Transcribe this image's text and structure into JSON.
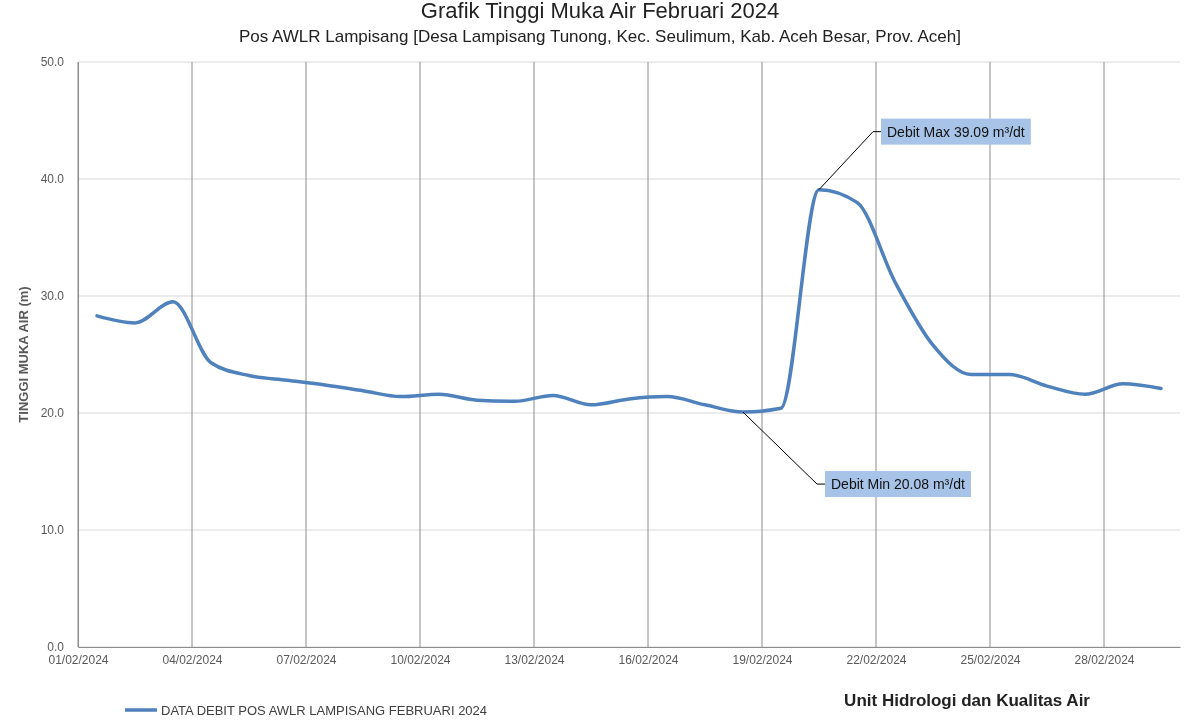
{
  "chart_data": {
    "type": "line",
    "title": "Grafik Tinggi Muka Air Februari 2024",
    "subtitle": "Pos AWLR Lampisang [Desa Lampisang Tunong, Kec. Seulimum, Kab. Aceh Besar, Prov. Aceh]",
    "ylabel": "TINGGI MUKA AIR (m)",
    "x": [
      "2024-02-01T12:00",
      "2024-02-02T12:00",
      "2024-02-03T12:00",
      "2024-02-04T12:00",
      "2024-02-05T12:00",
      "2024-02-06T12:00",
      "2024-02-07T12:00",
      "2024-02-08T12:00",
      "2024-02-09T12:00",
      "2024-02-10T12:00",
      "2024-02-11T12:00",
      "2024-02-12T12:00",
      "2024-02-13T12:00",
      "2024-02-14T12:00",
      "2024-02-15T12:00",
      "2024-02-16T12:00",
      "2024-02-17T12:00",
      "2024-02-18T12:00",
      "2024-02-19T12:00",
      "2024-02-20T12:00",
      "2024-02-21T12:00",
      "2024-02-22T12:00",
      "2024-02-23T12:00",
      "2024-02-24T12:00",
      "2024-02-25T12:00",
      "2024-02-26T12:00",
      "2024-02-27T12:00",
      "2024-02-28T12:00",
      "2024-02-29T12:00"
    ],
    "series": [
      {
        "name": "DATA DEBIT POS AWLR LAMPISANG FEBRUARI 2024",
        "color": "#4f81bd",
        "values": [
          28.3,
          27.7,
          29.5,
          24.3,
          23.2,
          22.8,
          22.4,
          21.9,
          21.4,
          21.6,
          21.1,
          21.0,
          21.5,
          20.7,
          21.2,
          21.4,
          20.7,
          20.08,
          20.4,
          39.09,
          38.0,
          31.2,
          25.8,
          23.3,
          23.3,
          22.3,
          21.6,
          22.5,
          22.1
        ]
      }
    ],
    "xlim": [
      "2024-02-01",
      "2024-03-01"
    ],
    "xticks": [
      {
        "value": "2024-02-01",
        "label": "01/02/2024"
      },
      {
        "value": "2024-02-04",
        "label": "04/02/2024"
      },
      {
        "value": "2024-02-07",
        "label": "07/02/2024"
      },
      {
        "value": "2024-02-10",
        "label": "10/02/2024"
      },
      {
        "value": "2024-02-13",
        "label": "13/02/2024"
      },
      {
        "value": "2024-02-16",
        "label": "16/02/2024"
      },
      {
        "value": "2024-02-19",
        "label": "19/02/2024"
      },
      {
        "value": "2024-02-22",
        "label": "22/02/2024"
      },
      {
        "value": "2024-02-25",
        "label": "25/02/2024"
      },
      {
        "value": "2024-02-28",
        "label": "28/02/2024"
      }
    ],
    "ylim": [
      0,
      50
    ],
    "yticks": [
      {
        "value": 0,
        "label": "0.0"
      },
      {
        "value": 10,
        "label": "10.0"
      },
      {
        "value": 20,
        "label": "20.0"
      },
      {
        "value": 30,
        "label": "30.0"
      },
      {
        "value": 40,
        "label": "40.0"
      },
      {
        "value": 50,
        "label": "50.0"
      }
    ],
    "grid": true,
    "legend": "bottom left",
    "marker": "none",
    "line_style": "solid",
    "annotations": [
      {
        "text": "Debit Max 39.09 m³/dt",
        "x": "2024-02-20T12:00",
        "y": 39.09
      },
      {
        "text": "Debit Min 20.08 m³/dt",
        "x": "2024-02-18T12:00",
        "y": 20.08
      },
      "Unit Hidrologi dan Kualitas Air"
    ]
  }
}
